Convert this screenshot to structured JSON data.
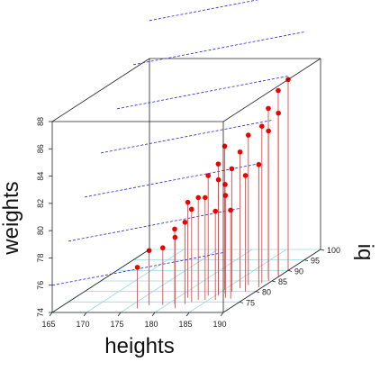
{
  "chart_data": {
    "type": "scatter3d",
    "title": "",
    "xlabel": "heights",
    "ylabel": "iq",
    "zlabel": "weights",
    "xlim": [
      165,
      190
    ],
    "ylim": [
      70,
      100
    ],
    "zlim": [
      74,
      88
    ],
    "x_ticks": [
      "165",
      "170",
      "175",
      "180",
      "185",
      "190"
    ],
    "y_ticks": [
      "75",
      "80",
      "85",
      "90",
      "95",
      "100"
    ],
    "z_ticks": [
      "74",
      "76",
      "78",
      "80",
      "82",
      "84",
      "86",
      "88"
    ],
    "drop_lines": true,
    "grid": true,
    "regression_plane": true,
    "colors": {
      "points": "#ee0000",
      "drop_lines": "#ee4444",
      "plane": "#2222dd",
      "grid": "#9ad8ea",
      "box": "#222222"
    },
    "points": [
      {
        "x": 176.5,
        "y": 72.0,
        "z": 77.0
      },
      {
        "x": 177.5,
        "y": 73.5,
        "z": 78.0
      },
      {
        "x": 179.5,
        "y": 73.5,
        "z": 78.2
      },
      {
        "x": 181.0,
        "y": 74.0,
        "z": 79.5
      },
      {
        "x": 181.5,
        "y": 77.0,
        "z": 81.0
      },
      {
        "x": 182.0,
        "y": 72.0,
        "z": 79.2
      },
      {
        "x": 182.5,
        "y": 74.0,
        "z": 80.0
      },
      {
        "x": 183.0,
        "y": 75.0,
        "z": 80.8
      },
      {
        "x": 183.5,
        "y": 76.0,
        "z": 81.5
      },
      {
        "x": 184.0,
        "y": 78.0,
        "z": 82.8
      },
      {
        "x": 184.5,
        "y": 76.0,
        "z": 81.5
      },
      {
        "x": 185.0,
        "y": 79.0,
        "z": 83.5
      },
      {
        "x": 185.0,
        "y": 81.0,
        "z": 84.5
      },
      {
        "x": 185.5,
        "y": 78.0,
        "z": 82.5
      },
      {
        "x": 186.0,
        "y": 76.0,
        "z": 80.5
      },
      {
        "x": 186.0,
        "y": 79.0,
        "z": 82.0
      },
      {
        "x": 186.5,
        "y": 80.0,
        "z": 83.0
      },
      {
        "x": 187.0,
        "y": 77.0,
        "z": 81.5
      },
      {
        "x": 187.0,
        "y": 81.5,
        "z": 84.0
      },
      {
        "x": 187.5,
        "y": 83.0,
        "z": 85.0
      },
      {
        "x": 188.0,
        "y": 76.5,
        "z": 80.5
      },
      {
        "x": 188.5,
        "y": 80.0,
        "z": 82.5
      },
      {
        "x": 189.0,
        "y": 84.0,
        "z": 85.5
      },
      {
        "x": 189.0,
        "y": 86.0,
        "z": 86.5
      },
      {
        "x": 189.5,
        "y": 88.0,
        "z": 87.5
      },
      {
        "x": 189.5,
        "y": 85.0,
        "z": 85.0
      },
      {
        "x": 190.0,
        "y": 90.0,
        "z": 88.0
      },
      {
        "x": 190.0,
        "y": 87.0,
        "z": 86.0
      },
      {
        "x": 189.5,
        "y": 82.0,
        "z": 83.0
      }
    ]
  }
}
